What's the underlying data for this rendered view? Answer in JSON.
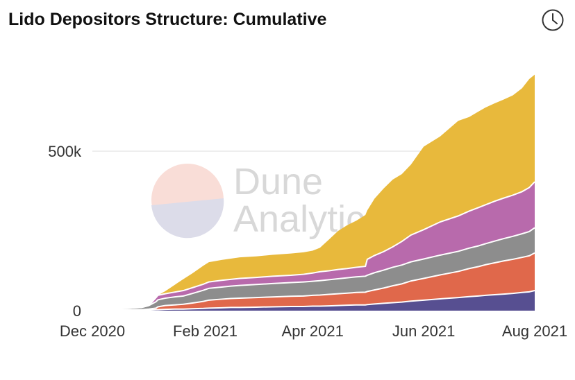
{
  "title": "Lido Depositors Structure: Cumulative",
  "icons": {
    "history": "clock-icon"
  },
  "watermark": {
    "line1": "Dune",
    "line2": "Analytics"
  },
  "colors": {
    "series": [
      "#574f91",
      "#e0684b",
      "#8d8d8d",
      "#b86aac",
      "#e8b93c"
    ]
  },
  "chart_data": {
    "type": "area",
    "stacked": true,
    "x_tick_labels": [
      "Dec 2020",
      "Feb 2021",
      "Apr 2021",
      "Jun 2021",
      "Aug 2021"
    ],
    "y_tick_labels": [
      "0",
      "500k"
    ],
    "y_ticks": [
      0,
      500000
    ],
    "ylim": [
      0,
      800000
    ],
    "xlim": [
      "2020-12-01",
      "2021-08-01"
    ],
    "grid": "horizontal",
    "x": [
      "2020-12-10",
      "2020-12-15",
      "2020-12-20",
      "2020-12-28",
      "2021-01-01",
      "2021-01-05",
      "2021-01-06",
      "2021-01-10",
      "2021-01-15",
      "2021-01-20",
      "2021-01-25",
      "2021-01-31",
      "2021-02-03",
      "2021-02-10",
      "2021-02-15",
      "2021-02-20",
      "2021-03-01",
      "2021-03-10",
      "2021-03-20",
      "2021-03-27",
      "2021-04-01",
      "2021-04-05",
      "2021-04-10",
      "2021-04-15",
      "2021-04-20",
      "2021-04-25",
      "2021-04-30",
      "2021-05-01",
      "2021-05-05",
      "2021-05-10",
      "2021-05-15",
      "2021-05-20",
      "2021-05-25",
      "2021-06-01",
      "2021-06-10",
      "2021-06-20",
      "2021-06-26",
      "2021-07-01",
      "2021-07-05",
      "2021-07-10",
      "2021-07-15",
      "2021-07-20",
      "2021-07-25",
      "2021-07-29",
      "2021-08-01"
    ],
    "series": [
      {
        "values": [
          1000,
          1000,
          1000,
          1000,
          2000,
          3000,
          3000,
          4000,
          5000,
          5000,
          6000,
          7000,
          8000,
          9000,
          10000,
          10000,
          11000,
          12000,
          13000,
          13000,
          14000,
          14000,
          15000,
          16000,
          17000,
          18000,
          18000,
          19000,
          21000,
          23000,
          25000,
          27000,
          30000,
          33000,
          37000,
          41000,
          44000,
          46000,
          48000,
          50000,
          52000,
          54000,
          57000,
          59000,
          63000
        ]
      },
      {
        "values": [
          1000,
          2000,
          2000,
          2000,
          3000,
          5000,
          9000,
          12000,
          13000,
          15000,
          18000,
          22000,
          25000,
          27000,
          28000,
          29000,
          30000,
          31000,
          32000,
          33000,
          34000,
          35000,
          36000,
          37000,
          38000,
          39000,
          40000,
          41000,
          44000,
          48000,
          53000,
          57000,
          63000,
          68000,
          75000,
          82000,
          88000,
          92000,
          96000,
          100000,
          104000,
          107000,
          110000,
          113000,
          118000
        ]
      },
      {
        "values": [
          2000,
          3000,
          5000,
          7000,
          11000,
          20000,
          22000,
          23000,
          25000,
          26000,
          30000,
          35000,
          37000,
          38000,
          39000,
          40000,
          41000,
          42000,
          43000,
          44000,
          44000,
          45000,
          46000,
          47000,
          48000,
          49000,
          50000,
          51000,
          54000,
          56000,
          58000,
          59000,
          60000,
          61000,
          62000,
          63000,
          64000,
          65000,
          66000,
          68000,
          70000,
          72000,
          74000,
          76000,
          79000
        ]
      },
      {
        "values": [
          0,
          0,
          0,
          0,
          0,
          13000,
          14000,
          14000,
          15000,
          17000,
          18000,
          19000,
          20000,
          21000,
          21000,
          22000,
          22000,
          23000,
          23000,
          24000,
          26000,
          28000,
          28000,
          29000,
          29000,
          30000,
          31000,
          50000,
          54000,
          58000,
          64000,
          74000,
          84000,
          92000,
          104000,
          111000,
          116000,
          120000,
          122000,
          125000,
          127000,
          129000,
          132000,
          138000,
          144000
        ]
      },
      {
        "values": [
          0,
          0,
          0,
          0,
          0,
          0,
          0,
          8000,
          22000,
          36000,
          45000,
          58000,
          62000,
          64000,
          65000,
          66000,
          66000,
          67000,
          68000,
          69000,
          70000,
          75000,
          98000,
          121000,
          136000,
          146000,
          161000,
          153000,
          178000,
          198000,
          211000,
          211000,
          221000,
          260000,
          268000,
          298000,
          295000,
          301000,
          305000,
          307000,
          309000,
          313000,
          324000,
          340000,
          336000
        ]
      }
    ]
  }
}
